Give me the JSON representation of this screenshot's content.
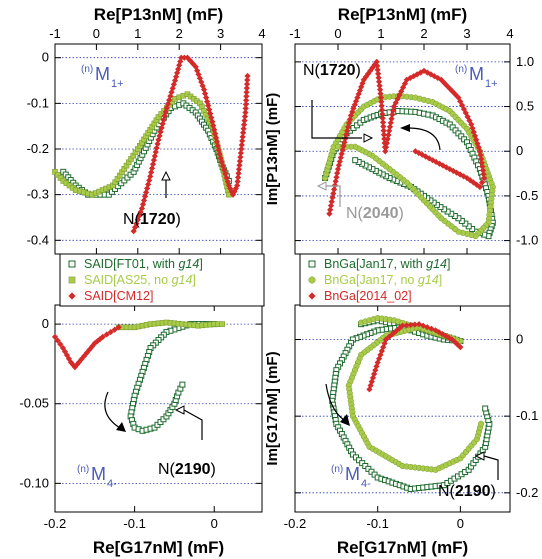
{
  "colors": {
    "dark_green": "#1e6b2e",
    "light_green": "#a8cc4a",
    "red": "#d42a2a",
    "blue_text": "#4a5bb8",
    "grid": "#2b3fb0"
  },
  "chart_data": [
    {
      "id": "top-left",
      "type": "scatter",
      "xlabel": "Re[P13nM]   (mF)",
      "ylabel": "",
      "xlim": [
        -1,
        4
      ],
      "ylim": [
        -0.43,
        0.03
      ],
      "xticks": [
        "-1",
        "0",
        "1",
        "2",
        "3",
        "4"
      ],
      "xtick_values": [
        -1,
        0,
        1,
        2,
        3,
        4
      ],
      "yticks": [
        "0",
        "-0.1",
        "-0.2",
        "-0.3",
        "-0.4"
      ],
      "ytick_values": [
        0,
        -0.1,
        -0.2,
        -0.3,
        -0.4
      ],
      "multipole": {
        "n": "(n)",
        "M": "M",
        "sub": "1+"
      },
      "annotation": {
        "prefix": "N(",
        "value": "1720",
        "suffix": ")"
      },
      "series": [
        {
          "name": "SAID[FT01, with g14]",
          "marker": "square-open",
          "color": "dark_green",
          "x": [
            -0.8,
            -0.5,
            -0.2,
            0.3,
            0.9,
            1.4,
            1.8,
            2.1,
            2.4,
            2.7,
            2.9,
            3.05,
            3.15,
            3.2
          ],
          "y": [
            -0.25,
            -0.28,
            -0.3,
            -0.3,
            -0.25,
            -0.16,
            -0.11,
            -0.1,
            -0.12,
            -0.16,
            -0.2,
            -0.24,
            -0.26,
            -0.27
          ]
        },
        {
          "name": "SAID[AS25, no g14]",
          "marker": "square-filled",
          "color": "light_green",
          "x": [
            -1.0,
            -0.8,
            -0.5,
            -0.1,
            0.4,
            1.0,
            1.5,
            1.9,
            2.2,
            2.5,
            2.8,
            3.0,
            3.2
          ],
          "y": [
            -0.25,
            -0.27,
            -0.29,
            -0.3,
            -0.28,
            -0.2,
            -0.13,
            -0.09,
            -0.08,
            -0.1,
            -0.15,
            -0.22,
            -0.3
          ]
        },
        {
          "name": "SAID[CM12]",
          "marker": "diamond",
          "color": "red",
          "x": [
            0.9,
            1.1,
            1.3,
            1.5,
            1.7,
            1.9,
            2.05,
            2.2,
            2.4,
            2.6,
            2.8,
            3.0,
            3.2,
            3.3,
            3.4,
            3.5,
            3.6,
            3.65
          ],
          "y": [
            -0.38,
            -0.33,
            -0.26,
            -0.18,
            -0.11,
            -0.05,
            0.0,
            0.0,
            -0.02,
            -0.07,
            -0.14,
            -0.22,
            -0.28,
            -0.3,
            -0.28,
            -0.2,
            -0.12,
            -0.04
          ]
        }
      ]
    },
    {
      "id": "top-right",
      "type": "scatter",
      "xlabel": "Re[P13nM]   (mF)",
      "ylabel": "Im[P13nM]   (mF)",
      "xlim": [
        -1,
        4
      ],
      "ylim": [
        -1.15,
        1.2
      ],
      "xticks": [
        "-1",
        "0",
        "1",
        "2",
        "3",
        "4"
      ],
      "xtick_values": [
        -1,
        0,
        1,
        2,
        3,
        4
      ],
      "yticks": [
        "1.0",
        "0.5",
        "0",
        "-0.5",
        "-1.0"
      ],
      "ytick_values": [
        1.0,
        0.5,
        0,
        -0.5,
        -1.0
      ],
      "multipole": {
        "n": "(n)",
        "M": "M",
        "sub": "1+"
      },
      "annotations": [
        {
          "prefix": "N(",
          "value": "1720",
          "suffix": ")"
        },
        {
          "prefix": "N(",
          "value": "2040",
          "suffix": ")"
        }
      ],
      "series": [
        {
          "name": "BnGa[Jan17, with g14]",
          "marker": "square-open",
          "color": "dark_green",
          "x": [
            -0.3,
            -0.1,
            0.2,
            0.6,
            1.0,
            1.4,
            1.8,
            2.2,
            2.6,
            3.0,
            3.3,
            3.5,
            3.6,
            3.5,
            3.2,
            2.8,
            2.3,
            1.7,
            1.2,
            0.8,
            0.4
          ],
          "y": [
            -0.3,
            0.0,
            0.2,
            0.35,
            0.42,
            0.45,
            0.44,
            0.4,
            0.3,
            0.1,
            -0.2,
            -0.5,
            -0.8,
            -0.95,
            -0.9,
            -0.75,
            -0.6,
            -0.4,
            -0.3,
            -0.2,
            -0.1
          ]
        },
        {
          "name": "BnGa[Jan17, no g14]",
          "marker": "circle",
          "color": "light_green",
          "x": [
            -0.3,
            -0.1,
            0.2,
            0.6,
            1.0,
            1.4,
            1.8,
            2.2,
            2.6,
            3.0,
            3.3,
            3.6,
            3.5,
            3.2,
            2.8,
            2.4,
            2.0,
            1.6,
            1.2,
            0.8,
            0.4,
            0.0
          ],
          "y": [
            -0.3,
            0.05,
            0.3,
            0.5,
            0.6,
            0.62,
            0.6,
            0.55,
            0.45,
            0.25,
            0.0,
            -0.4,
            -0.8,
            -0.95,
            -0.9,
            -0.75,
            -0.55,
            -0.35,
            -0.2,
            -0.05,
            0.05,
            0.05
          ]
        },
        {
          "name": "BnGa[2014_02]",
          "marker": "diamond",
          "color": "red",
          "x": [
            -0.2,
            0.0,
            0.3,
            0.6,
            0.9,
            1.0,
            1.1,
            1.3,
            1.6,
            2.0,
            2.4,
            2.8,
            3.1,
            3.3,
            3.4,
            3.3,
            3.0,
            2.6,
            2.2,
            1.8
          ],
          "y": [
            -0.7,
            -0.2,
            0.4,
            0.8,
            1.0,
            0.6,
            0.0,
            0.5,
            0.8,
            0.9,
            0.8,
            0.6,
            0.3,
            0.0,
            -0.3,
            -0.4,
            -0.3,
            -0.2,
            -0.1,
            0.0
          ]
        }
      ]
    },
    {
      "id": "bottom-left",
      "type": "scatter",
      "xlabel": "Re[G17nM]   (mF)",
      "ylabel": "",
      "xlim": [
        -0.2,
        0.06
      ],
      "ylim": [
        -0.118,
        0.012
      ],
      "xticks": [
        "-0.2",
        "-0.1",
        "0"
      ],
      "xtick_values": [
        -0.2,
        -0.1,
        0
      ],
      "yticks": [
        "0",
        "-0.05",
        "-0.10"
      ],
      "ytick_values": [
        0,
        -0.05,
        -0.1
      ],
      "multipole": {
        "n": "(n)",
        "M": "M",
        "sub": "4-"
      },
      "annotation": {
        "prefix": "N(",
        "value": "2190",
        "suffix": ")"
      },
      "series": [
        {
          "name": "SAID[FT01, with g14]",
          "color": "dark_green",
          "x": [
            0.0,
            -0.03,
            -0.06,
            -0.08,
            -0.09,
            -0.1,
            -0.105,
            -0.1,
            -0.09,
            -0.075,
            -0.06,
            -0.05,
            -0.045,
            -0.04
          ],
          "y": [
            0.0,
            0.0,
            -0.005,
            -0.015,
            -0.03,
            -0.045,
            -0.058,
            -0.065,
            -0.067,
            -0.065,
            -0.058,
            -0.05,
            -0.043,
            -0.038
          ]
        },
        {
          "name": "SAID[AS25, no g14]",
          "color": "light_green",
          "x": [
            -0.12,
            -0.1,
            -0.08,
            -0.06,
            -0.04,
            -0.02,
            0.0,
            0.01
          ],
          "y": [
            -0.002,
            -0.002,
            0.0,
            0.001,
            0.0,
            -0.001,
            0.0,
            0.0
          ]
        },
        {
          "name": "SAID[CM12]",
          "color": "red",
          "x": [
            -0.2,
            -0.19,
            -0.18,
            -0.175,
            -0.17,
            -0.16,
            -0.15,
            -0.14,
            -0.13,
            -0.12
          ],
          "y": [
            -0.008,
            -0.015,
            -0.024,
            -0.027,
            -0.024,
            -0.018,
            -0.012,
            -0.008,
            -0.005,
            -0.002
          ]
        }
      ]
    },
    {
      "id": "bottom-right",
      "type": "scatter",
      "xlabel": "Re[G17nM]   (mF)",
      "ylabel": "Im[G17nM]   (mF)",
      "xlim": [
        -0.2,
        0.06
      ],
      "ylim": [
        -0.225,
        0.045
      ],
      "xticks": [
        "-0.2",
        "-0.1",
        "0"
      ],
      "xtick_values": [
        -0.2,
        -0.1,
        0
      ],
      "yticks": [
        "0",
        "-0.1",
        "-0.2"
      ],
      "ytick_values": [
        0,
        -0.1,
        -0.2
      ],
      "multipole": {
        "n": "(n)",
        "M": "M",
        "sub": "4-"
      },
      "annotation": {
        "prefix": "N(",
        "value": "2190",
        "suffix": ")"
      },
      "series": [
        {
          "name": "BnGa[Jan17, with g14]",
          "color": "dark_green",
          "x": [
            -0.12,
            -0.1,
            -0.08,
            -0.06,
            -0.04,
            -0.02,
            0.0,
            -0.06,
            -0.1,
            -0.13,
            -0.15,
            -0.155,
            -0.15,
            -0.13,
            -0.1,
            -0.06,
            -0.02,
            0.01,
            0.03,
            0.035,
            0.03
          ],
          "y": [
            0.02,
            0.025,
            0.02,
            0.012,
            0.005,
            0.0,
            -0.002,
            0.018,
            0.012,
            0.0,
            -0.04,
            -0.08,
            -0.11,
            -0.15,
            -0.18,
            -0.195,
            -0.19,
            -0.17,
            -0.14,
            -0.11,
            -0.09
          ]
        },
        {
          "name": "BnGa[Jan17, no g14]",
          "color": "light_green",
          "x": [
            -0.12,
            -0.1,
            -0.08,
            -0.05,
            -0.02,
            0.0,
            -0.05,
            -0.09,
            -0.12,
            -0.135,
            -0.13,
            -0.11,
            -0.07,
            -0.03,
            0.0,
            0.02,
            0.025
          ],
          "y": [
            0.022,
            0.028,
            0.025,
            0.015,
            0.005,
            -0.002,
            0.016,
            0.005,
            -0.02,
            -0.06,
            -0.1,
            -0.14,
            -0.165,
            -0.17,
            -0.155,
            -0.13,
            -0.11
          ]
        },
        {
          "name": "BnGa[2014_02]",
          "color": "red",
          "x": [
            -0.11,
            -0.1,
            -0.09,
            -0.07,
            -0.05,
            -0.03,
            -0.01,
            0.0
          ],
          "y": [
            -0.065,
            -0.03,
            0.0,
            0.018,
            0.02,
            0.012,
            0.0,
            -0.01
          ]
        }
      ]
    }
  ],
  "legend_left": {
    "items": [
      {
        "label": "SAID[FT01, with ",
        "italic": "g14",
        "tail": "]",
        "marker": "square-open",
        "color": "dark_green"
      },
      {
        "label": "SAID[AS25, no ",
        "italic": "g14",
        "tail": "]",
        "marker": "square-filled",
        "color": "light_green"
      },
      {
        "label": "SAID[CM12]",
        "italic": "",
        "tail": "",
        "marker": "diamond",
        "color": "red"
      }
    ]
  },
  "legend_right": {
    "items": [
      {
        "label": "BnGa[Jan17, with ",
        "italic": "g14",
        "tail": "]",
        "marker": "square-open",
        "color": "dark_green"
      },
      {
        "label": "BnGa[Jan17, no ",
        "italic": "g14",
        "tail": "]",
        "marker": "circle",
        "color": "light_green"
      },
      {
        "label": "BnGa[2014_02]",
        "italic": "",
        "tail": "",
        "marker": "diamond",
        "color": "red"
      }
    ]
  }
}
